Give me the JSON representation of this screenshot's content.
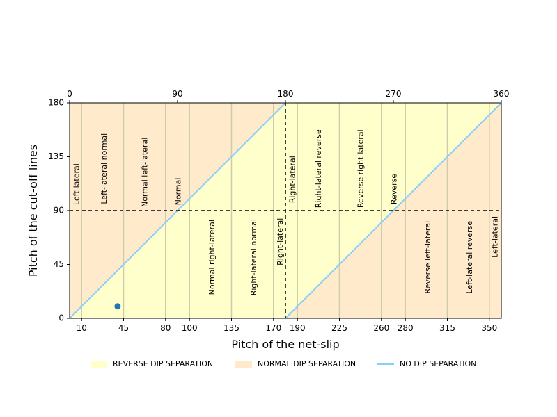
{
  "chart_data": {
    "type": "scatter",
    "xlabel": "Pitch of the net-slip",
    "ylabel": "Pitch of the cut-off lines",
    "xlim": [
      0,
      360
    ],
    "ylim": [
      0,
      180
    ],
    "x_ticks": [
      10,
      45,
      80,
      100,
      135,
      170,
      190,
      225,
      260,
      280,
      315,
      350
    ],
    "y_ticks": [
      0,
      45,
      90,
      135,
      180
    ],
    "top_ticks": [
      0,
      90,
      180,
      270,
      360
    ],
    "colors": {
      "reverse": "#FFFFCC",
      "normal": "#FFEBCC",
      "no_sep": "#87CEFA",
      "point": "#1F77B4",
      "vlines": "#CCCCAA"
    },
    "vlines": [
      10,
      45,
      80,
      100,
      135,
      170,
      190,
      225,
      260,
      280,
      315,
      350
    ],
    "regions": [
      {
        "x": [
          0,
          180
        ],
        "y": [
          0,
          180
        ],
        "type": "normal",
        "side": "above"
      },
      {
        "x": [
          0,
          180
        ],
        "y": [
          0,
          180
        ],
        "type": "reverse",
        "side": "below"
      },
      {
        "x": [
          180,
          360
        ],
        "y": [
          0,
          180
        ],
        "type": "reverse",
        "side": "above"
      },
      {
        "x": [
          180,
          360
        ],
        "y": [
          0,
          180
        ],
        "type": "normal",
        "side": "below"
      }
    ],
    "no_dip_lines": [
      {
        "x": [
          0,
          180
        ],
        "y": [
          0,
          180
        ]
      },
      {
        "x": [
          180,
          360
        ],
        "y": [
          0,
          180
        ]
      }
    ],
    "dashed_lines": {
      "h": 90,
      "v": 180
    },
    "point": {
      "x": 40,
      "y": 10
    },
    "region_labels": [
      {
        "text": "Left-lateral",
        "x": 6,
        "y": 112
      },
      {
        "text": "Left-lateral normal",
        "x": 29,
        "y": 125
      },
      {
        "text": "Normal left-lateral",
        "x": 63,
        "y": 122
      },
      {
        "text": "Normal",
        "x": 91,
        "y": 106
      },
      {
        "text": "Normal right-lateral",
        "x": 119,
        "y": 51
      },
      {
        "text": "Right-lateral normal",
        "x": 154,
        "y": 51
      },
      {
        "text": "Right-lateral",
        "x": 176,
        "y": 64
      },
      {
        "text": "Right-lateral",
        "x": 186,
        "y": 116
      },
      {
        "text": "Right-lateral reverse",
        "x": 208,
        "y": 125
      },
      {
        "text": "Reverse right-lateral",
        "x": 243,
        "y": 125
      },
      {
        "text": "Reverse",
        "x": 271,
        "y": 108
      },
      {
        "text": "Reverse left-lateral",
        "x": 299,
        "y": 51
      },
      {
        "text": "Left-lateral reverse",
        "x": 334,
        "y": 51
      },
      {
        "text": "Left-lateral",
        "x": 355,
        "y": 68
      }
    ],
    "legend": [
      {
        "label": "REVERSE DIP SEPARATION",
        "kind": "patch",
        "color_key": "reverse"
      },
      {
        "label": "NORMAL DIP SEPARATION",
        "kind": "patch",
        "color_key": "normal"
      },
      {
        "label": "NO DIP SEPARATION",
        "kind": "line",
        "color_key": "no_sep"
      }
    ],
    "legend_position": "bottom-center"
  }
}
